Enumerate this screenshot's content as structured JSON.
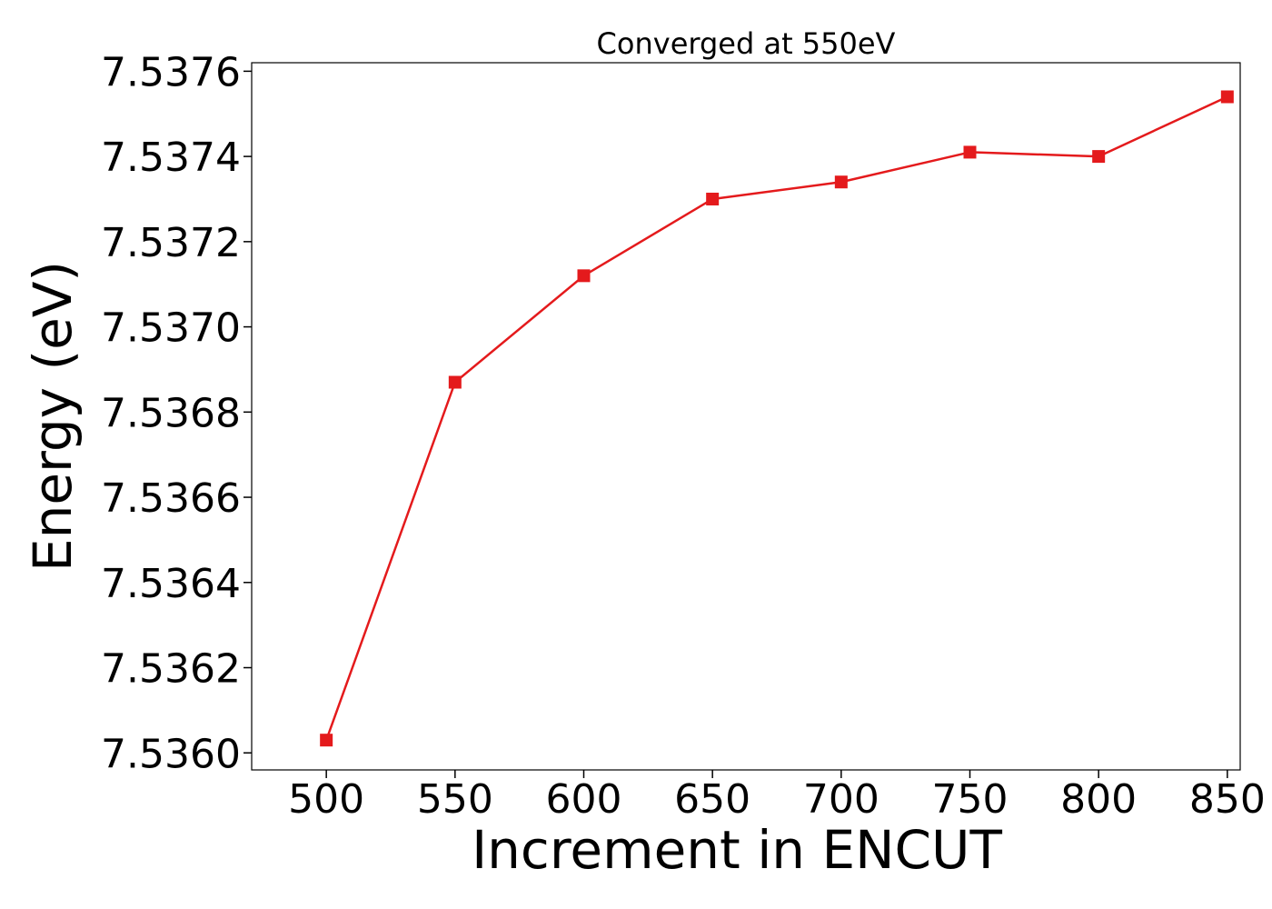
{
  "chart_data": {
    "type": "line",
    "title": "Converged at 550eV",
    "xlabel": "Increment in ENCUT",
    "ylabel": "Energy (eV)",
    "xlim": [
      471,
      855
    ],
    "ylim": [
      7.53596,
      7.53762
    ],
    "x_ticks": [
      "500",
      "550",
      "600",
      "650",
      "700",
      "750",
      "800",
      "850"
    ],
    "y_ticks": [
      "7.5360",
      "7.5362",
      "7.5364",
      "7.5366",
      "7.5368",
      "7.5370",
      "7.5372",
      "7.5374",
      "7.5376"
    ],
    "grid": false,
    "series": [
      {
        "color": "#e41a1c",
        "marker": "square",
        "x": [
          500,
          550,
          600,
          650,
          700,
          750,
          800,
          850
        ],
        "y": [
          7.53603,
          7.53687,
          7.53712,
          7.5373,
          7.53734,
          7.53741,
          7.5374,
          7.53754
        ]
      }
    ]
  }
}
